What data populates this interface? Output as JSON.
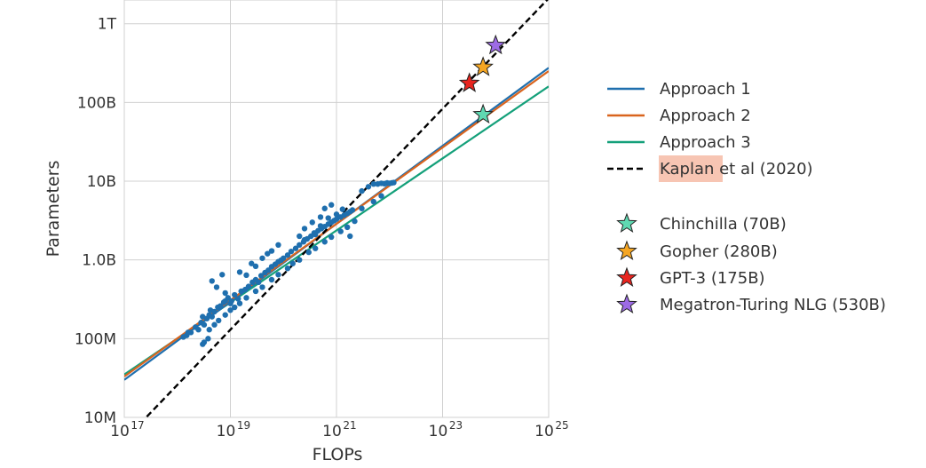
{
  "chart_data": {
    "type": "scatter",
    "xlabel": "FLOPs",
    "ylabel": "Parameters",
    "x_scale": "log",
    "y_scale": "log",
    "xlim": [
      1e+17,
      1e+25
    ],
    "ylim": [
      10000000.0,
      2000000000000.0
    ],
    "grid": true,
    "legend_position": "right",
    "x_ticks": [
      {
        "value": 1e+17,
        "base": "10",
        "exp": "17"
      },
      {
        "value": 1e+19,
        "base": "10",
        "exp": "19"
      },
      {
        "value": 1e+21,
        "base": "10",
        "exp": "21"
      },
      {
        "value": 1e+23,
        "base": "10",
        "exp": "23"
      },
      {
        "value": 1e+25,
        "base": "10",
        "exp": "25"
      }
    ],
    "y_ticks": [
      {
        "value": 10000000.0,
        "label": "10M"
      },
      {
        "value": 100000000.0,
        "label": "100M"
      },
      {
        "value": 1000000000.0,
        "label": "1.0B"
      },
      {
        "value": 10000000000.0,
        "label": "10B"
      },
      {
        "value": 100000000000.0,
        "label": "100B"
      },
      {
        "value": 1000000000000.0,
        "label": "1T"
      }
    ],
    "lines": [
      {
        "name": "Approach 1",
        "color": "#1f6fae",
        "style": "solid",
        "points": [
          [
            1e+17,
            30000000.0
          ],
          [
            1e+25,
            275000000000.0
          ]
        ]
      },
      {
        "name": "Approach 2",
        "color": "#d9641e",
        "style": "solid",
        "points": [
          [
            1e+17,
            33000000.0
          ],
          [
            1e+25,
            250000000000.0
          ]
        ]
      },
      {
        "name": "Approach 3",
        "color": "#14a07a",
        "style": "solid",
        "points": [
          [
            1e+17,
            35000000.0
          ],
          [
            1e+25,
            160000000000.0
          ]
        ]
      },
      {
        "name": "Kaplan et al (2020)",
        "color": "#000000",
        "style": "dashed",
        "points": [
          [
            1.1e+17,
            5500000.0
          ],
          [
            1e+25,
            2100000000000.0
          ]
        ]
      }
    ],
    "models": [
      {
        "name": "Chinchilla (70B)",
        "flops": 5.8e+23,
        "params": 70000000000.0,
        "color": "#5fd9b2"
      },
      {
        "name": "Gopher (280B)",
        "flops": 5.8e+23,
        "params": 280000000000.0,
        "color": "#f5a623"
      },
      {
        "name": "GPT-3 (175B)",
        "flops": 3.2e+23,
        "params": 175000000000.0,
        "color": "#e8251f"
      },
      {
        "name": "Megatron-Turing NLG (530B)",
        "flops": 1e+24,
        "params": 530000000000.0,
        "color": "#9d6be6"
      }
    ],
    "scatter_color": "#1f6fae",
    "scatter_points": [
      [
        1.3e+18,
        105000000.0
      ],
      [
        1.5e+18,
        110000000.0
      ],
      [
        1.8e+18,
        120000000.0
      ],
      [
        1.6e+18,
        120000000.0
      ],
      [
        2.2e+18,
        140000000.0
      ],
      [
        2.5e+18,
        130000000.0
      ],
      [
        2.8e+18,
        160000000.0
      ],
      [
        3.2e+18,
        150000000.0
      ],
      [
        3.6e+18,
        180000000.0
      ],
      [
        3e+18,
        190000000.0
      ],
      [
        4e+18,
        200000000.0
      ],
      [
        4.5e+18,
        190000000.0
      ],
      [
        4.2e+18,
        230000000.0
      ],
      [
        5e+18,
        220000000.0
      ],
      [
        5.8e+18,
        250000000.0
      ],
      [
        6.5e+18,
        260000000.0
      ],
      [
        7.5e+18,
        290000000.0
      ],
      [
        8e+18,
        300000000.0
      ],
      [
        9e+18,
        330000000.0
      ],
      [
        1e+19,
        280000000.0
      ],
      [
        1.05e+19,
        300000000.0
      ],
      [
        1.2e+19,
        360000000.0
      ],
      [
        1.4e+19,
        320000000.0
      ],
      [
        1.6e+19,
        400000000.0
      ],
      [
        1.9e+19,
        420000000.0
      ],
      [
        2.2e+19,
        460000000.0
      ],
      [
        2.6e+19,
        520000000.0
      ],
      [
        3e+19,
        560000000.0
      ],
      [
        3.4e+19,
        520000000.0
      ],
      [
        3.8e+19,
        630000000.0
      ],
      [
        4.5e+19,
        690000000.0
      ],
      [
        5.2e+19,
        740000000.0
      ],
      [
        6e+19,
        820000000.0
      ],
      [
        7e+19,
        880000000.0
      ],
      [
        8e+19,
        950000000.0
      ],
      [
        9e+19,
        990000000.0
      ],
      [
        1e+20,
        1050000000.0
      ],
      [
        1.2e+20,
        1150000000.0
      ],
      [
        1.4e+20,
        1280000000.0
      ],
      [
        1.7e+20,
        1400000000.0
      ],
      [
        2e+20,
        1550000000.0
      ],
      [
        2.4e+20,
        1700000000.0
      ],
      [
        2.8e+20,
        1850000000.0
      ],
      [
        3.3e+20,
        2000000000.0
      ],
      [
        3.8e+20,
        2200000000.0
      ],
      [
        4.5e+20,
        2350000000.0
      ],
      [
        5.2e+20,
        2500000000.0
      ],
      [
        6e+20,
        2650000000.0
      ],
      [
        7e+20,
        2850000000.0
      ],
      [
        8e+20,
        3000000000.0
      ],
      [
        9e+20,
        3150000000.0
      ],
      [
        1e+21,
        3300000000.0
      ],
      [
        1.2e+21,
        3500000000.0
      ],
      [
        1.4e+21,
        3700000000.0
      ],
      [
        1.6e+21,
        3900000000.0
      ],
      [
        1.8e+21,
        4100000000.0
      ],
      [
        2e+21,
        4300000000.0
      ],
      [
        3e+21,
        4500000000.0
      ],
      [
        5e+21,
        5500000000.0
      ],
      [
        7e+21,
        6500000000.0
      ],
      [
        4.5e+18,
        540000000.0
      ],
      [
        5.5e+18,
        450000000.0
      ],
      [
        7e+18,
        650000000.0
      ],
      [
        8e+18,
        380000000.0
      ],
      [
        2e+19,
        640000000.0
      ],
      [
        1.5e+19,
        700000000.0
      ],
      [
        3e+19,
        830000000.0
      ],
      [
        2.5e+19,
        900000000.0
      ],
      [
        4e+19,
        1050000000.0
      ],
      [
        5e+19,
        1200000000.0
      ],
      [
        6e+19,
        1300000000.0
      ],
      [
        8e+19,
        1550000000.0
      ],
      [
        2e+20,
        2000000000.0
      ],
      [
        2.5e+20,
        2500000000.0
      ],
      [
        3.5e+20,
        3000000000.0
      ],
      [
        5e+20,
        3500000000.0
      ],
      [
        6e+20,
        4500000000.0
      ],
      [
        8e+20,
        5000000000.0
      ],
      [
        3e+21,
        7500000000.0
      ],
      [
        4e+21,
        8500000000.0
      ],
      [
        3e+18,
        85000000.0
      ],
      [
        3.2e+18,
        90000000.0
      ],
      [
        3.8e+18,
        100000000.0
      ],
      [
        4e+18,
        130000000.0
      ],
      [
        5e+18,
        150000000.0
      ],
      [
        6e+18,
        170000000.0
      ],
      [
        8e+18,
        200000000.0
      ],
      [
        1e+19,
        230000000.0
      ],
      [
        1.2e+19,
        250000000.0
      ],
      [
        1.5e+19,
        280000000.0
      ],
      [
        2e+19,
        330000000.0
      ],
      [
        3e+19,
        400000000.0
      ],
      [
        4e+19,
        450000000.0
      ],
      [
        6e+19,
        560000000.0
      ],
      [
        8e+19,
        650000000.0
      ],
      [
        1.2e+20,
        780000000.0
      ],
      [
        1.5e+20,
        900000000.0
      ],
      [
        2e+20,
        1000000000.0
      ],
      [
        3e+20,
        1250000000.0
      ],
      [
        4e+20,
        1400000000.0
      ],
      [
        6e+20,
        1700000000.0
      ],
      [
        8e+20,
        1950000000.0
      ],
      [
        1.2e+21,
        2300000000.0
      ],
      [
        1.6e+21,
        2600000000.0
      ],
      [
        2.2e+21,
        3100000000.0
      ],
      [
        5e+20,
        2700000000.0
      ],
      [
        7e+20,
        3400000000.0
      ],
      [
        1e+21,
        3800000000.0
      ],
      [
        1.3e+21,
        4400000000.0
      ],
      [
        1.8e+21,
        2000000000.0
      ],
      [
        5e+21,
        9200000000.0
      ],
      [
        6e+21,
        9200000000.0
      ],
      [
        7e+21,
        9400000000.0
      ],
      [
        8e+21,
        9300000000.0
      ],
      [
        9e+21,
        9500000000.0
      ],
      [
        1e+22,
        9400000000.0
      ],
      [
        1.1e+22,
        9500000000.0
      ],
      [
        1.2e+22,
        9600000000.0
      ],
      [
        2.5e+20,
        1800000000.0
      ],
      [
        4e+20,
        2100000000.0
      ]
    ]
  }
}
